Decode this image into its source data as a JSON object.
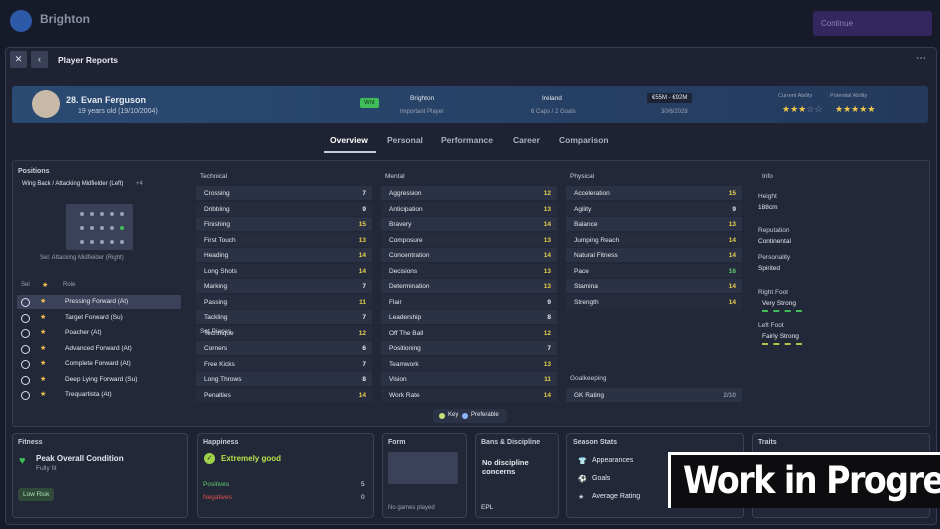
{
  "top_bar": {
    "club": "Brighton",
    "continue": "Continue"
  },
  "panel": {
    "title": "Player Reports"
  },
  "player": {
    "name": "28. Evan Ferguson",
    "age": "19 years old (19/10/2004)",
    "status": "Wnt",
    "club": "Brighton",
    "club_role": "Important Player",
    "nation": "Ireland",
    "caps": "6 Caps / 2 Goals",
    "value": "€55M - €92M",
    "contract": "30/6/2028",
    "ca_label": "Current Ability",
    "pa_label": "Potential Ability",
    "ca_stars": 3,
    "pa_stars": 5
  },
  "tabs": [
    "Overview",
    "Personal",
    "Performance",
    "Career",
    "Comparison"
  ],
  "positions": {
    "title": "Positions",
    "main": "Wing Back / Attacking Midfielder (Left)",
    "extra": "+4",
    "selected": "Sel: Attacking Midfielder (Right)"
  },
  "roles": {
    "headers": [
      "Sel",
      "Role"
    ],
    "rows": [
      "Pressing Forward (At)",
      "Target Forward (Su)",
      "Poacher (At)",
      "Advanced Forward (At)",
      "Complete Forward (At)",
      "Deep Lying Forward (Su)",
      "Trequartista (At)"
    ]
  },
  "attributes": {
    "technical": {
      "title": "Technical",
      "rows": [
        {
          "name": "Crossing",
          "value": 7
        },
        {
          "name": "Dribbling",
          "value": 9
        },
        {
          "name": "Finishing",
          "value": 15
        },
        {
          "name": "First Touch",
          "value": 13
        },
        {
          "name": "Heading",
          "value": 14
        },
        {
          "name": "Long Shots",
          "value": 14
        },
        {
          "name": "Marking",
          "value": 7
        },
        {
          "name": "Passing",
          "value": 11
        },
        {
          "name": "Tackling",
          "value": 7
        },
        {
          "name": "Technique",
          "value": 12
        }
      ]
    },
    "set_pieces": {
      "title": "Set Pieces",
      "rows": [
        {
          "name": "Corners",
          "value": 6
        },
        {
          "name": "Free Kicks",
          "value": 7
        },
        {
          "name": "Long Throws",
          "value": 8
        },
        {
          "name": "Penalties",
          "value": 14
        }
      ]
    },
    "mental": {
      "title": "Mental",
      "rows": [
        {
          "name": "Aggression",
          "value": 12
        },
        {
          "name": "Anticipation",
          "value": 13
        },
        {
          "name": "Bravery",
          "value": 14
        },
        {
          "name": "Composure",
          "value": 13
        },
        {
          "name": "Concentration",
          "value": 14
        },
        {
          "name": "Decisions",
          "value": 13
        },
        {
          "name": "Determination",
          "value": 13
        },
        {
          "name": "Flair",
          "value": 9
        },
        {
          "name": "Leadership",
          "value": 8
        },
        {
          "name": "Off The Ball",
          "value": 12
        },
        {
          "name": "Positioning",
          "value": 7
        },
        {
          "name": "Teamwork",
          "value": 13
        },
        {
          "name": "Vision",
          "value": 11
        },
        {
          "name": "Work Rate",
          "value": 14
        }
      ]
    },
    "physical": {
      "title": "Physical",
      "rows": [
        {
          "name": "Acceleration",
          "value": 15
        },
        {
          "name": "Agility",
          "value": 9
        },
        {
          "name": "Balance",
          "value": 13
        },
        {
          "name": "Jumping Reach",
          "value": 14
        },
        {
          "name": "Natural Fitness",
          "value": 14
        },
        {
          "name": "Pace",
          "value": 16
        },
        {
          "name": "Stamina",
          "value": 14
        },
        {
          "name": "Strength",
          "value": 14
        }
      ]
    },
    "goalkeeping": {
      "title": "Goalkeeping",
      "rows": [
        {
          "name": "GK Rating",
          "value": "2/10"
        }
      ]
    }
  },
  "info": {
    "title": "Info",
    "items": [
      {
        "label": "Height",
        "value": "188cm"
      },
      {
        "label": "Reputation",
        "value": "Continental"
      },
      {
        "label": "Personality",
        "value": "Spirited"
      },
      {
        "label": "Right Foot",
        "value": "Very Strong"
      },
      {
        "label": "Left Foot",
        "value": "Fairly Strong"
      }
    ]
  },
  "legend": [
    "Key",
    "Preferable"
  ],
  "cards": {
    "fitness": {
      "title": "Fitness",
      "headline": "Peak Overall Condition",
      "sub": "Fully fit",
      "risk": "Low Risk"
    },
    "happiness": {
      "title": "Happiness",
      "headline": "Extremely good",
      "positives_label": "Positives",
      "positives": 5,
      "negatives_label": "Negatives",
      "negatives": 0
    },
    "form": {
      "title": "Form",
      "note": "No games played"
    },
    "bans": {
      "title": "Bans & Discipline",
      "headline": "No discipline concerns",
      "league": "EPL"
    },
    "season": {
      "title": "Season Stats",
      "items": [
        "Appearances",
        "Goals",
        "Average Rating"
      ]
    },
    "traits": {
      "title": "Traits"
    }
  },
  "banner": "Work in Progress"
}
